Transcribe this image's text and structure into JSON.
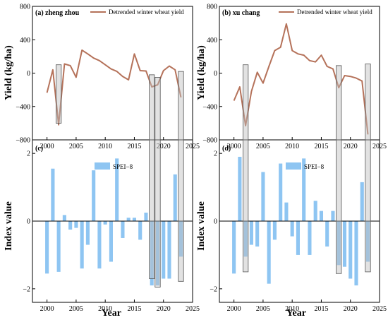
{
  "axis_titles": {
    "yield": "Yield (kg/ha)",
    "index": "Index value",
    "year": "Year"
  },
  "chart_data": [
    {
      "type": "line",
      "panel": "(a) zheng zhou",
      "legend": "Detrended winter wheat yield",
      "series_color": "#b5725a",
      "x": [
        2000,
        2001,
        2002,
        2003,
        2004,
        2005,
        2006,
        2007,
        2008,
        2009,
        2010,
        2011,
        2012,
        2013,
        2014,
        2015,
        2016,
        2017,
        2018,
        2019,
        2020,
        2021,
        2022,
        2023
      ],
      "values": [
        -235,
        40,
        -620,
        110,
        90,
        -50,
        275,
        230,
        180,
        150,
        100,
        50,
        20,
        -40,
        -80,
        230,
        30,
        25,
        -165,
        -140,
        30,
        85,
        40,
        -290
      ],
      "ylim": [
        -800,
        800
      ],
      "yticks": [
        -800,
        -400,
        0,
        400,
        800
      ],
      "xlim": [
        1997.5,
        2025
      ],
      "xticks": [
        2000,
        2005,
        2010,
        2015,
        2020,
        2025
      ],
      "highlight_years": [
        2002,
        2018,
        2019,
        2023
      ],
      "highlight_ranges": [
        [
          -600,
          100
        ],
        [
          -1700,
          -20
        ],
        [
          -1950,
          -50
        ],
        [
          -1780,
          20
        ]
      ]
    },
    {
      "type": "line",
      "panel": "(b) xu chang",
      "legend": "Detrended winter wheat yield",
      "series_color": "#b5725a",
      "x": [
        2000,
        2001,
        2002,
        2003,
        2004,
        2005,
        2006,
        2007,
        2008,
        2009,
        2010,
        2011,
        2012,
        2013,
        2014,
        2015,
        2016,
        2017,
        2018,
        2019,
        2020,
        2021,
        2022,
        2023
      ],
      "values": [
        -330,
        -165,
        -630,
        -220,
        10,
        -120,
        80,
        270,
        310,
        590,
        270,
        230,
        215,
        150,
        135,
        215,
        80,
        50,
        -175,
        -30,
        -40,
        -60,
        -95,
        -735
      ],
      "ylim": [
        -800,
        800
      ],
      "yticks": [
        -800,
        -400,
        0,
        400,
        800
      ],
      "xlim": [
        1997.5,
        2025
      ],
      "xticks": [
        2000,
        2005,
        2010,
        2015,
        2020,
        2025
      ],
      "highlight_years": [
        2002,
        2018,
        2023
      ],
      "highlight_ranges": [
        [
          -1500,
          100
        ],
        [
          -1550,
          90
        ],
        [
          -1500,
          110
        ]
      ]
    },
    {
      "type": "bar",
      "panel": "(c)",
      "legend": "SPEI−8",
      "series_color": "#8ec5f2",
      "x": [
        2000,
        2001,
        2002,
        2003,
        2004,
        2005,
        2006,
        2007,
        2008,
        2009,
        2010,
        2011,
        2012,
        2013,
        2014,
        2015,
        2016,
        2017,
        2018,
        2019,
        2020,
        2021,
        2022,
        2023
      ],
      "values": [
        -1.55,
        1.55,
        -1.5,
        0.18,
        -0.25,
        -0.2,
        -1.4,
        -0.7,
        1.5,
        -1.4,
        -0.1,
        -1.2,
        1.85,
        -0.5,
        0.1,
        0.1,
        -0.55,
        0.25,
        -1.9,
        -1.9,
        -1.7,
        -1.7,
        1.38,
        -1.05
      ],
      "ylim": [
        -2.4,
        2.4
      ],
      "yticks": [
        -2,
        0,
        2
      ],
      "xlim": [
        1997.5,
        2025
      ],
      "xticks": [
        2000,
        2005,
        2010,
        2015,
        2020,
        2025
      ],
      "xlabel": "Year",
      "ylabel": "Index value"
    },
    {
      "type": "bar",
      "panel": "(d)",
      "legend": "SPEI−8",
      "series_color": "#8ec5f2",
      "x": [
        2000,
        2001,
        2002,
        2003,
        2004,
        2005,
        2006,
        2007,
        2008,
        2009,
        2010,
        2011,
        2012,
        2013,
        2014,
        2015,
        2016,
        2017,
        2018,
        2019,
        2020,
        2021,
        2022,
        2023
      ],
      "values": [
        -1.55,
        1.9,
        -1.05,
        -0.7,
        -0.75,
        1.45,
        -1.85,
        -0.55,
        1.7,
        0.55,
        -0.45,
        -1.0,
        1.85,
        -1.0,
        0.6,
        0.3,
        -0.75,
        0.3,
        -1.3,
        -1.35,
        -1.7,
        -1.9,
        1.15,
        -1.2
      ],
      "ylim": [
        -2.4,
        2.4
      ],
      "yticks": [
        -2,
        0,
        2
      ],
      "xlim": [
        1997.5,
        2025
      ],
      "xticks": [
        2000,
        2005,
        2010,
        2015,
        2020,
        2025
      ],
      "xlabel": "Year",
      "ylabel": "Index value"
    }
  ]
}
